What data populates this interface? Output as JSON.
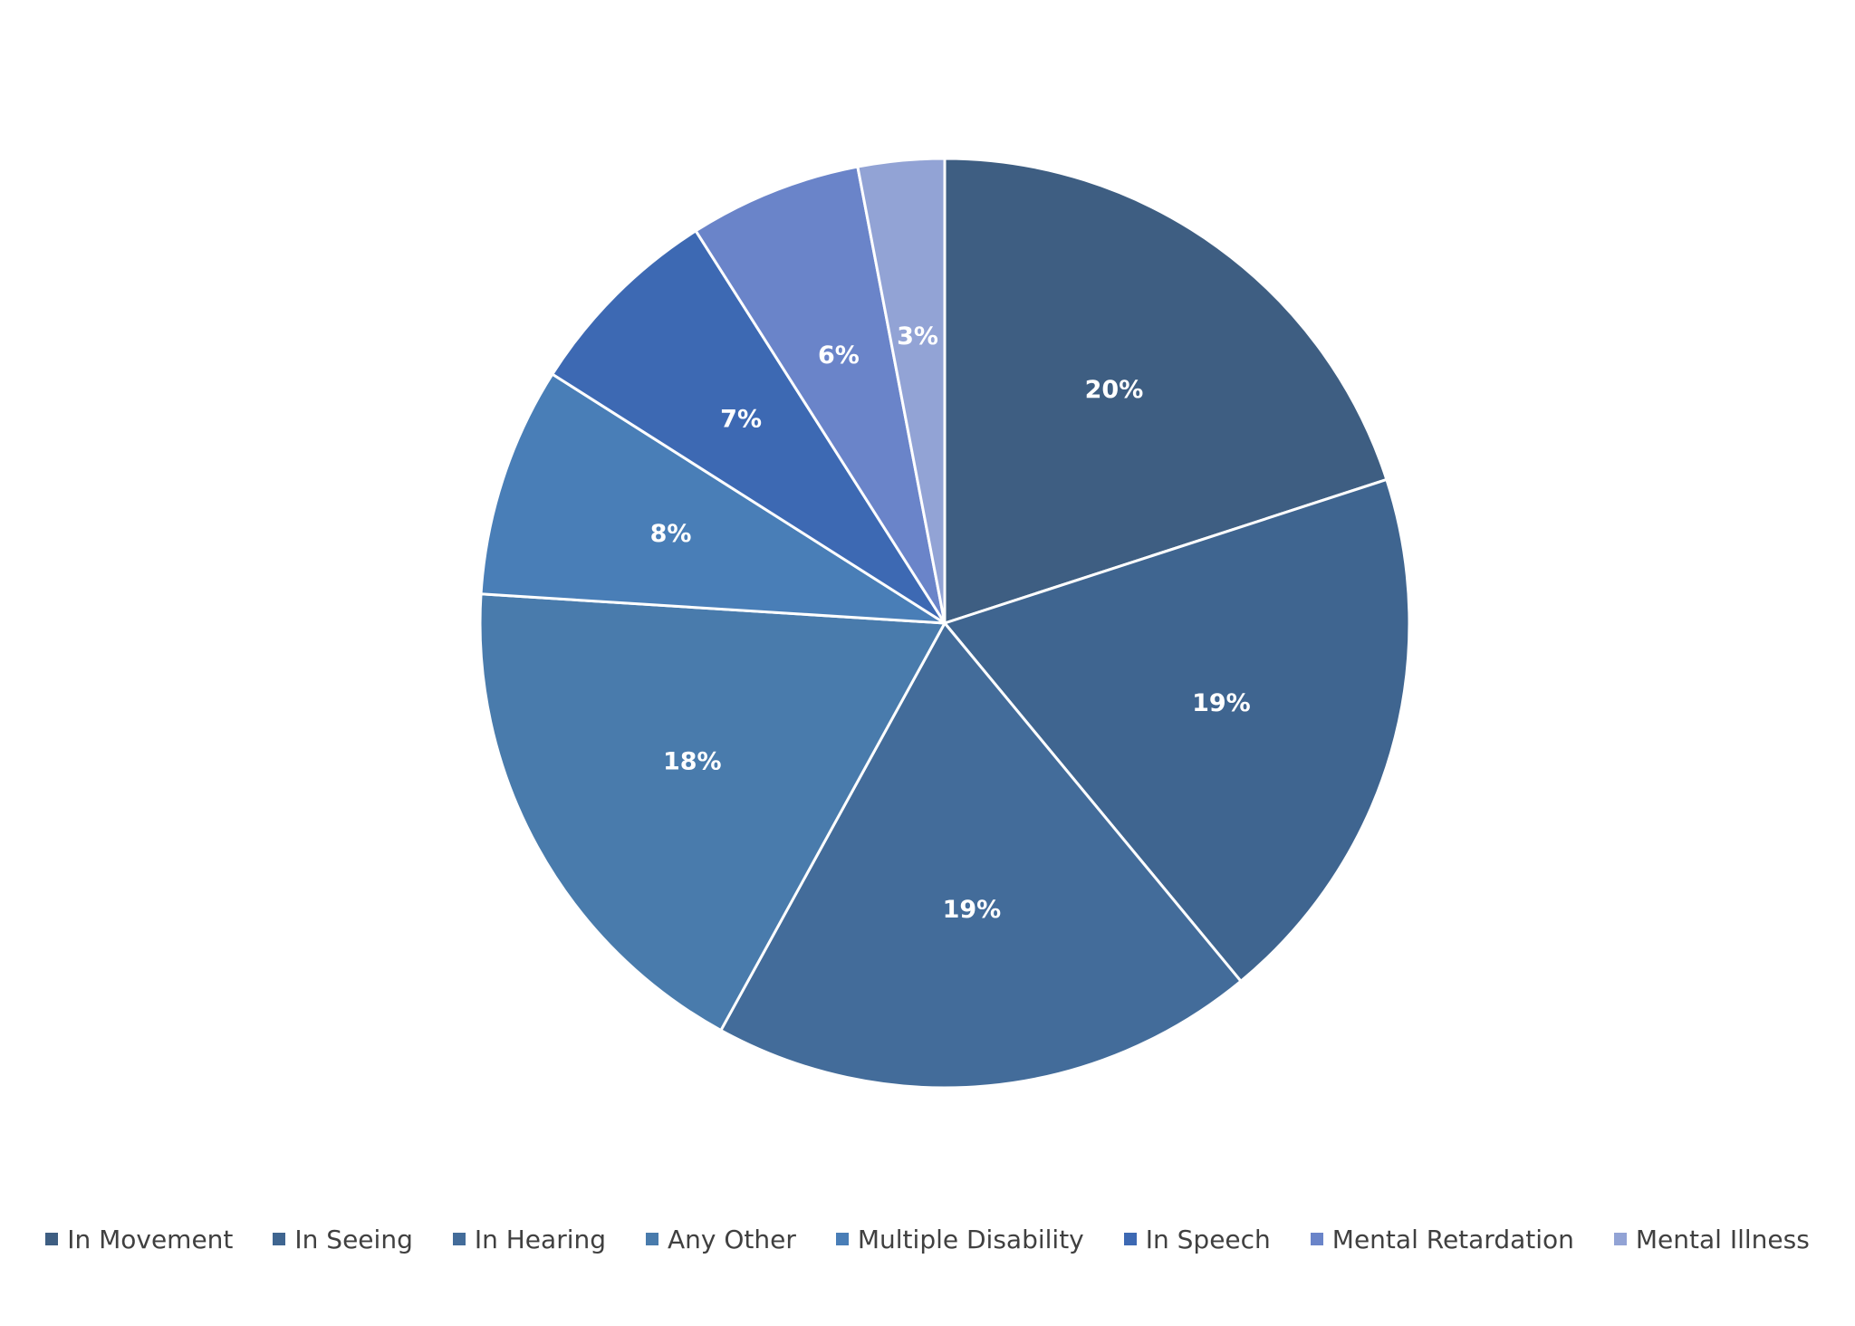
{
  "chart_data": {
    "type": "pie",
    "title": "",
    "start_angle_deg": 0,
    "direction": "clockwise",
    "legend_position": "bottom",
    "slices": [
      {
        "label": "In Movement",
        "value": 20,
        "data_label": "20%",
        "color": "#3E5E82"
      },
      {
        "label": "In Seeing",
        "value": 19,
        "data_label": "19%",
        "color": "#3F6590"
      },
      {
        "label": "In Hearing",
        "value": 19,
        "data_label": "19%",
        "color": "#436C9A"
      },
      {
        "label": "Any Other",
        "value": 18,
        "data_label": "18%",
        "color": "#497BAC"
      },
      {
        "label": "Multiple Disability",
        "value": 8,
        "data_label": "8%",
        "color": "#497EB7"
      },
      {
        "label": "In Speech",
        "value": 7,
        "data_label": "7%",
        "color": "#3D69B3"
      },
      {
        "label": "Mental Retardation",
        "value": 6,
        "data_label": "6%",
        "color": "#6A84C9"
      },
      {
        "label": "Mental Illness",
        "value": 3,
        "data_label": "3%",
        "color": "#92A3D5"
      }
    ]
  }
}
